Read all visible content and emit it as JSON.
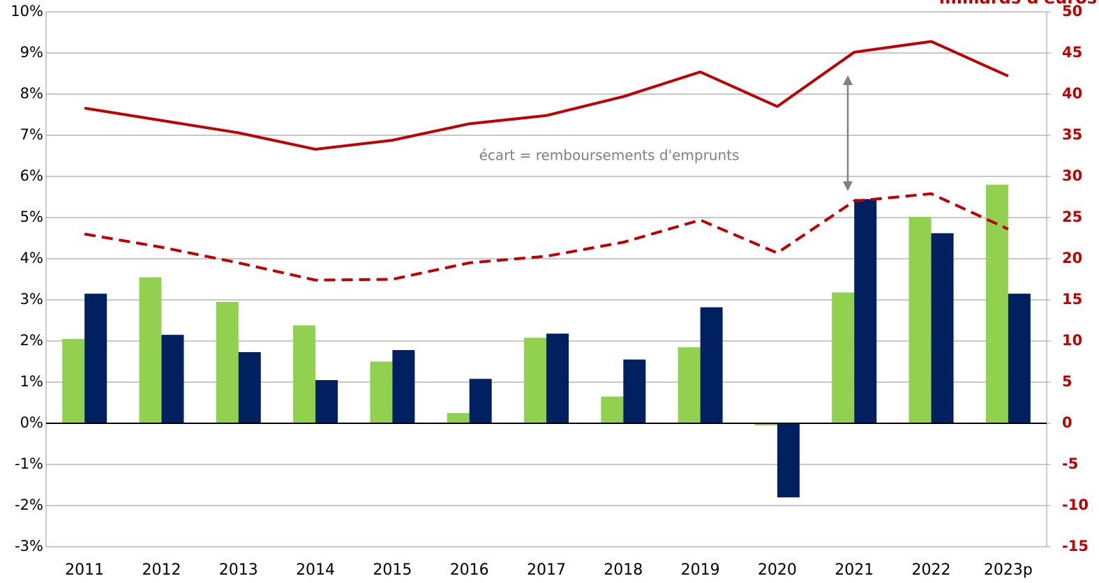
{
  "chart_data": {
    "type": "bar",
    "y2_title": "milliards d'euros",
    "annotation": "écart = remboursements d'emprunts",
    "categories": [
      "2011",
      "2012",
      "2013",
      "2014",
      "2015",
      "2016",
      "2017",
      "2018",
      "2019",
      "2020",
      "2021",
      "2022",
      "2023p"
    ],
    "series": [
      {
        "color": "#92d050",
        "values": [
          2.05,
          3.55,
          2.95,
          2.38,
          1.5,
          0.25,
          2.08,
          0.65,
          1.85,
          -0.05,
          3.18,
          5.02,
          5.8
        ]
      },
      {
        "color": "#002060",
        "values": [
          3.15,
          2.15,
          1.73,
          1.05,
          1.78,
          1.08,
          2.18,
          1.55,
          2.82,
          -1.8,
          5.45,
          4.62,
          3.15
        ]
      },
      {
        "type": "line",
        "axis": "y2",
        "color": "#c00000",
        "dash": false,
        "values": [
          38.3,
          36.8,
          35.3,
          33.3,
          34.4,
          36.4,
          37.4,
          39.7,
          42.7,
          38.5,
          45.1,
          46.4,
          42.2
        ]
      },
      {
        "type": "line",
        "axis": "y2",
        "color": "#c00000",
        "dash": true,
        "values": [
          23.0,
          21.4,
          19.5,
          17.4,
          17.5,
          19.5,
          20.3,
          22.0,
          24.7,
          20.7,
          27.0,
          27.9,
          23.6
        ]
      }
    ],
    "ylim": [
      -3,
      10
    ],
    "yticks": [
      {
        "value": -3,
        "label": "-3%"
      },
      {
        "value": -2,
        "label": "-2%"
      },
      {
        "value": -1,
        "label": "-1%"
      },
      {
        "value": 0,
        "label": "0%"
      },
      {
        "value": 1,
        "label": "1%"
      },
      {
        "value": 2,
        "label": "2%"
      },
      {
        "value": 3,
        "label": "3%"
      },
      {
        "value": 4,
        "label": "4%"
      },
      {
        "value": 5,
        "label": "5%"
      },
      {
        "value": 6,
        "label": "6%"
      },
      {
        "value": 7,
        "label": "7%"
      },
      {
        "value": 8,
        "label": "8%"
      },
      {
        "value": 9,
        "label": "9%"
      },
      {
        "value": 10,
        "label": "10%"
      }
    ],
    "y2lim": [
      -15,
      50
    ],
    "y2ticks": [
      -15,
      -10,
      -5,
      0,
      5,
      10,
      15,
      20,
      25,
      30,
      35,
      40,
      45,
      50
    ],
    "grid": true
  }
}
